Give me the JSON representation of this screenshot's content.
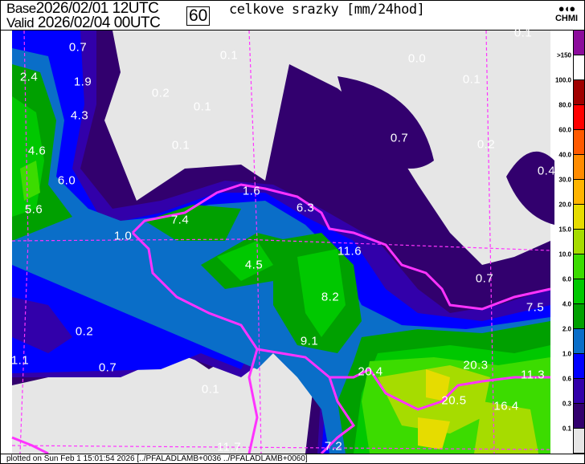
{
  "header": {
    "base_label": "Base",
    "base_value": "2026/02/01 12UTC",
    "valid_label": "Valid",
    "valid_value": "2026/02/04 00UTC",
    "forecast_hour": "60",
    "title": "celkove srazky [mm/24hod]",
    "logo_text": "CHMI"
  },
  "legend": {
    "labels": [
      ">150",
      "100.0",
      "80.0",
      "60.0",
      "40.0",
      "30.0",
      "20.0",
      "15.0",
      "10.0",
      "6.0",
      "4.0",
      "2.0",
      "1.0",
      "0.6",
      "0.3",
      "0.1"
    ],
    "colors": [
      "#8c0c9c",
      "#ffffff",
      "#a00000",
      "#ff0000",
      "#ff5a00",
      "#ff8c00",
      "#ffb400",
      "#e6dc00",
      "#a6dc00",
      "#3cdc00",
      "#00c800",
      "#00a000",
      "#0a6ec8",
      "#0000ff",
      "#3200aa",
      "#32006e",
      "#e6e6e6"
    ]
  },
  "map": {
    "background": "#e6e6e6",
    "border_color": "#ff33ff",
    "values": [
      "0.7",
      "0.1",
      "0.1",
      "0.0",
      "2.4",
      "1.9",
      "0.2",
      "0.1",
      "0.1",
      "4.3",
      "0.7",
      "0.1",
      "0.2",
      "4.6",
      "6.0",
      "0.4",
      "5.6",
      "1.6",
      "6.3",
      "7.4",
      "1.0",
      "11.6",
      "4.5",
      "0.7",
      "8.2",
      "7.5",
      "0.2",
      "9.1",
      "1.1",
      "0.7",
      "20.4",
      "20.3",
      "11.3",
      "0.1",
      "20.5",
      "16.4",
      "11.7",
      "7.2"
    ]
  },
  "footer": {
    "text": "plotted on Sun Feb  1 15:01:54 2026 [../PFALADLAMB+0036 ../PFALADLAMB+0060]"
  }
}
